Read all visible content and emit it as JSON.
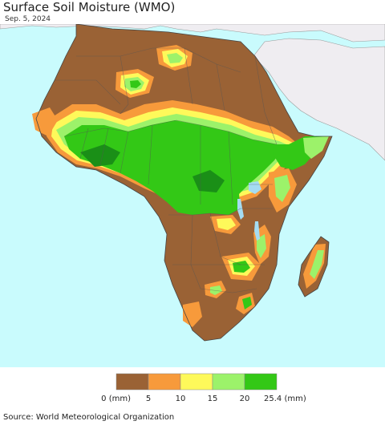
{
  "header": {
    "title": "Surface Soil Moisture (WMO)",
    "date": "Sep. 5, 2024"
  },
  "colors": {
    "ocean": "#c9fbfd",
    "other_land": "#efedf1",
    "dry": "#9a6235",
    "orange": "#f79a3b",
    "yellow": "#fef95a",
    "light_green": "#9cf26a",
    "green": "#33c816",
    "dark_green": "#1a8f17",
    "lakes": "#a5dcf2",
    "borders": "#555555"
  },
  "legend": {
    "ticks": [
      "0 (mm)",
      "5",
      "10",
      "15",
      "20",
      "25.4 (mm)"
    ],
    "swatches": [
      "#9a6235",
      "#f79a3b",
      "#fef95a",
      "#9cf26a",
      "#33c816"
    ]
  },
  "footer": {
    "source": "Source: World Meteorological Organization"
  }
}
